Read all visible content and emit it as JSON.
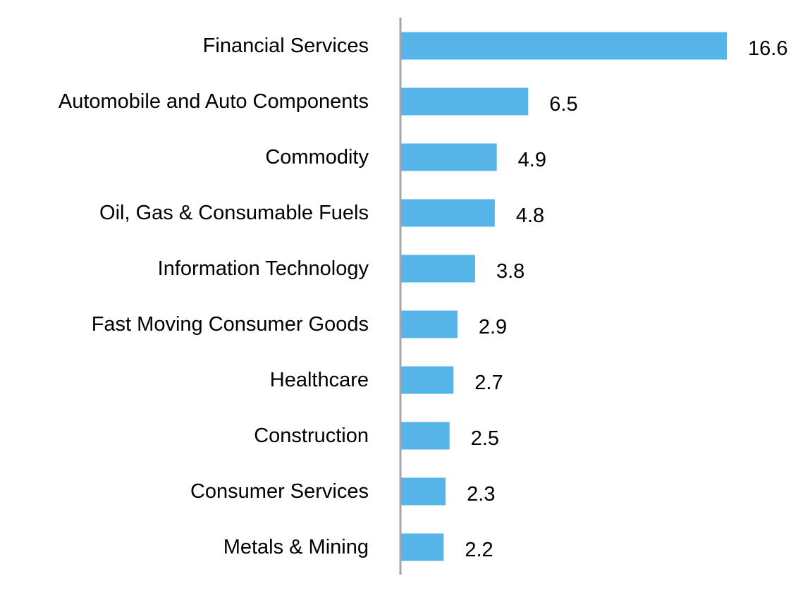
{
  "chart_data": {
    "type": "bar",
    "orientation": "horizontal",
    "title": "",
    "xlabel": "",
    "ylabel": "",
    "categories": [
      "Financial Services",
      "Automobile and Auto Components",
      "Commodity",
      "Oil, Gas & Consumable Fuels",
      "Information Technology",
      "Fast Moving Consumer Goods",
      "Healthcare",
      "Construction",
      "Consumer Services",
      "Metals & Mining"
    ],
    "values": [
      16.6,
      6.5,
      4.9,
      4.8,
      3.8,
      2.9,
      2.7,
      2.5,
      2.3,
      2.2
    ],
    "value_labels": [
      "16.6",
      "6.5",
      "4.9",
      "4.8",
      "3.8",
      "2.9",
      "2.7",
      "2.5",
      "2.3",
      "2.2"
    ],
    "xlim": [
      0,
      16.6
    ],
    "grid": false,
    "legend": "none",
    "colors": {
      "bar": "#56B4E9",
      "axis": "#A6A6A6",
      "text": "#000000"
    }
  }
}
